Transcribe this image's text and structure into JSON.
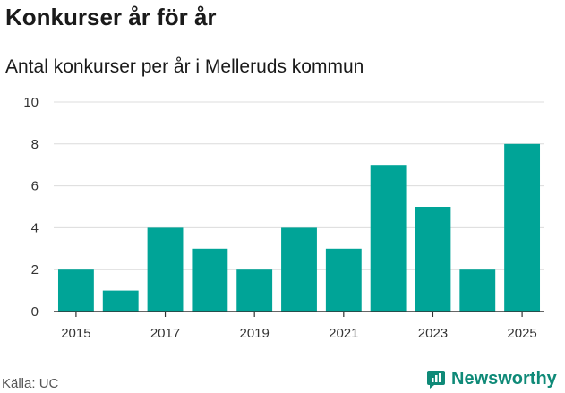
{
  "title": "Konkurser år för år",
  "subtitle": "Antal konkurser per år i Melleruds kommun",
  "source": "Källa: UC",
  "brand": "Newsworthy",
  "colors": {
    "bar": "#00a497",
    "grid": "#dcdcdc",
    "axis": "#333333",
    "brand": "#0f8a78"
  },
  "chart_data": {
    "type": "bar",
    "title": "Konkurser år för år",
    "subtitle": "Antal konkurser per år i Melleruds kommun",
    "xlabel": "",
    "ylabel": "",
    "categories": [
      "2015",
      "2016",
      "2017",
      "2018",
      "2019",
      "2020",
      "2021",
      "2022",
      "2023",
      "2024",
      "2025"
    ],
    "values": [
      2,
      1,
      4,
      3,
      2,
      4,
      3,
      7,
      5,
      2,
      8
    ],
    "x_tick_labels": [
      "2015",
      "2017",
      "2019",
      "2021",
      "2023",
      "2025"
    ],
    "y_ticks": [
      0,
      2,
      4,
      6,
      8,
      10
    ],
    "ylim": [
      0,
      10
    ],
    "grid": true
  }
}
